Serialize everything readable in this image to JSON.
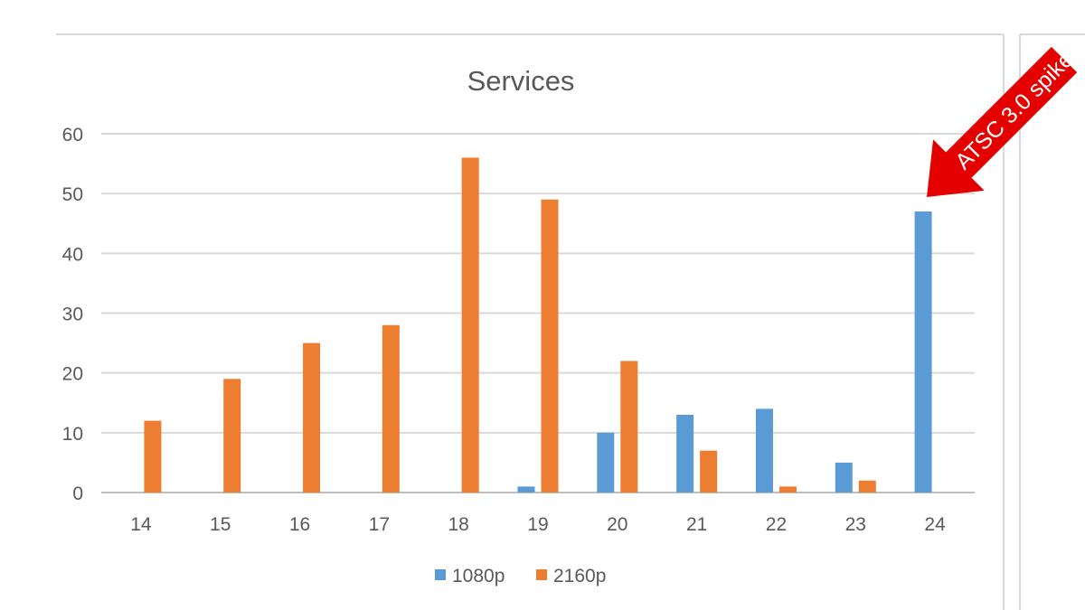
{
  "chart_data": {
    "type": "bar",
    "title": "Services",
    "categories": [
      "14",
      "15",
      "16",
      "17",
      "18",
      "19",
      "20",
      "21",
      "22",
      "23",
      "24"
    ],
    "series": [
      {
        "name": "1080p",
        "color": "#5b9bd5",
        "values": [
          0,
          0,
          0,
          0,
          0,
          1,
          10,
          13,
          14,
          5,
          47
        ]
      },
      {
        "name": "2160p",
        "color": "#ed7d31",
        "values": [
          12,
          19,
          25,
          28,
          56,
          49,
          22,
          7,
          1,
          2,
          0
        ]
      }
    ],
    "yticks": [
      "0",
      "10",
      "20",
      "30",
      "40",
      "50",
      "60"
    ],
    "ylim": [
      0,
      60
    ],
    "grid": true,
    "legend_position": "bottom",
    "annotation": {
      "text": "ATSC 3.0 spike",
      "color": "#e50000",
      "target_category": "24"
    }
  }
}
